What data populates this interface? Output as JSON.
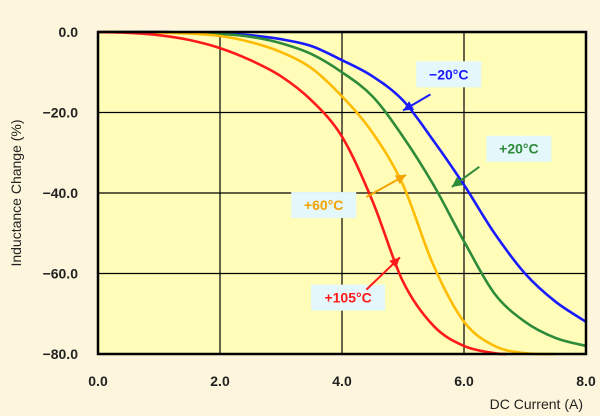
{
  "chart_data": {
    "type": "line",
    "title": "",
    "xlabel": "DC Current (A)",
    "ylabel": "Inductance Change (%)",
    "xlim": [
      0,
      8
    ],
    "ylim": [
      -80,
      0
    ],
    "x_ticks": [
      "0.0",
      "2.0",
      "4.0",
      "6.0",
      "8.0"
    ],
    "y_ticks": [
      "0.0",
      "−20.0",
      "−40.0",
      "−60.0",
      "−80.0"
    ],
    "grid": true,
    "plot_background": "#fffdb8",
    "series": [
      {
        "name": "−20°C",
        "color": "#1a1aff",
        "x": [
          0,
          1,
          2,
          2.5,
          3,
          3.5,
          4,
          4.5,
          5,
          5.5,
          6,
          6.5,
          7,
          7.5,
          8
        ],
        "y": [
          0,
          0,
          -0.3,
          -0.8,
          -1.8,
          -3.5,
          -7,
          -11,
          -17,
          -27,
          -38,
          -50,
          -60,
          -67,
          -72
        ]
      },
      {
        "name": "+20°C",
        "color": "#2e8b3a",
        "x": [
          0,
          1,
          2,
          2.5,
          3,
          3.5,
          4,
          4.5,
          5,
          5.5,
          6,
          6.5,
          7,
          7.5,
          8
        ],
        "y": [
          0,
          0,
          -0.5,
          -1.2,
          -2.8,
          -5.5,
          -10,
          -16,
          -26,
          -38,
          -52,
          -65,
          -72,
          -76,
          -78
        ]
      },
      {
        "name": "+60°C",
        "color": "#ffbb00",
        "x": [
          0,
          1,
          1.5,
          2,
          2.5,
          3,
          3.5,
          4,
          4.5,
          5,
          5.5,
          6,
          6.5,
          7,
          7.5
        ],
        "y": [
          0,
          -0.1,
          -0.4,
          -1,
          -2.5,
          -5,
          -9,
          -16,
          -25,
          -38,
          -58,
          -72,
          -78,
          -79.8,
          -80
        ]
      },
      {
        "name": "+105°C",
        "color": "#ff1a1a",
        "x": [
          0,
          0.5,
          1,
          1.5,
          2,
          2.5,
          3,
          3.5,
          4,
          4.5,
          5,
          5.5,
          6,
          6.5,
          6.7
        ],
        "y": [
          0,
          -0.2,
          -0.8,
          -2,
          -4,
          -7,
          -11,
          -17,
          -26,
          -42,
          -62,
          -73,
          -78,
          -79.8,
          -80
        ]
      }
    ],
    "annotations": [
      {
        "text": "−20°C",
        "color": "#1a1aff",
        "box_x": 5.75,
        "box_y": -10.5,
        "arrow_from": [
          5.45,
          -15.5
        ],
        "arrow_to": [
          5.0,
          -19.5
        ]
      },
      {
        "text": "+20°C",
        "color": "#2e8b3a",
        "box_x": 6.9,
        "box_y": -29,
        "arrow_from": [
          6.25,
          -33.5
        ],
        "arrow_to": [
          5.8,
          -38.5
        ]
      },
      {
        "text": "+60°C",
        "color": "#f5a300",
        "box_x": 3.7,
        "box_y": -43,
        "arrow_from": [
          4.4,
          -41
        ],
        "arrow_to": [
          5.05,
          -35.5
        ]
      },
      {
        "text": "+105°C",
        "color": "#ff1a1a",
        "box_x": 4.1,
        "box_y": -66,
        "arrow_from": [
          4.4,
          -64
        ],
        "arrow_to": [
          4.95,
          -56
        ]
      }
    ]
  }
}
